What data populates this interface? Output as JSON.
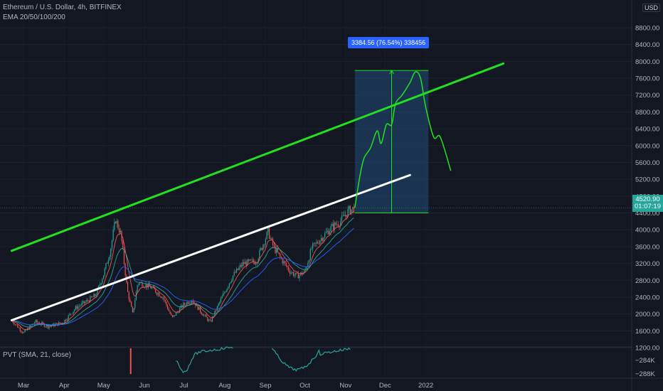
{
  "header": {
    "symbol_line": "Ethereum / U.S. Dollar, 4h, BITFINEX",
    "indicator_line": "EMA 20/50/100/200",
    "currency_badge": "USD"
  },
  "price_tag": {
    "price": "4520.90",
    "countdown": "01:07:19"
  },
  "range_measure": {
    "label": "3384.56 (76.54%) 338456"
  },
  "pvt": {
    "label": "PVT (SMA, 21, close)",
    "ticks": [
      "−284K",
      "−288K"
    ]
  },
  "colors": {
    "up": "#26a69a",
    "down": "#ef5350",
    "green_line": "#22e01f",
    "white_line": "#ffffff",
    "range_fill": "#1e3a5f",
    "accent": "#2962ff"
  },
  "chart_data": {
    "type": "candlestick",
    "symbol": "Ethereum / U.S. Dollar",
    "timeframe": "4h",
    "exchange": "BITFINEX",
    "ylim": [
      1100,
      8900
    ],
    "y_ticks": [
      1200,
      1600,
      2000,
      2400,
      2800,
      3200,
      3600,
      4000,
      4400,
      4800,
      5200,
      5600,
      6000,
      6400,
      6800,
      7200,
      7600,
      8000,
      8400,
      8800
    ],
    "y_tick_labels": [
      "1200.00",
      "1600.00",
      "2000.00",
      "2400.00",
      "2800.00",
      "3200.00",
      "3600.00",
      "4000.00",
      "4400.00",
      "4800.00",
      "5200.00",
      "5600.00",
      "6000.00",
      "6400.00",
      "6800.00",
      "7200.00",
      "7600.00",
      "8000.00",
      "8400.00",
      "8800.00"
    ],
    "x_tick_labels": [
      "Mar",
      "Apr",
      "May",
      "Jun",
      "Jul",
      "Aug",
      "Sep",
      "Oct",
      "Nov",
      "Dec",
      "2022"
    ],
    "price_path": [
      {
        "date": "2021-02-20",
        "price": 1850
      },
      {
        "date": "2021-03-01",
        "price": 1550
      },
      {
        "date": "2021-03-10",
        "price": 1820
      },
      {
        "date": "2021-03-20",
        "price": 1700
      },
      {
        "date": "2021-03-31",
        "price": 1800
      },
      {
        "date": "2021-04-10",
        "price": 2150
      },
      {
        "date": "2021-04-18",
        "price": 2300
      },
      {
        "date": "2021-04-25",
        "price": 2450
      },
      {
        "date": "2021-05-01",
        "price": 2950
      },
      {
        "date": "2021-05-06",
        "price": 3500
      },
      {
        "date": "2021-05-10",
        "price": 4250
      },
      {
        "date": "2021-05-14",
        "price": 3900
      },
      {
        "date": "2021-05-19",
        "price": 2550
      },
      {
        "date": "2021-05-23",
        "price": 2000
      },
      {
        "date": "2021-05-27",
        "price": 2750
      },
      {
        "date": "2021-06-05",
        "price": 2650
      },
      {
        "date": "2021-06-15",
        "price": 2400
      },
      {
        "date": "2021-06-22",
        "price": 1900
      },
      {
        "date": "2021-06-30",
        "price": 2200
      },
      {
        "date": "2021-07-07",
        "price": 2350
      },
      {
        "date": "2021-07-14",
        "price": 2050
      },
      {
        "date": "2021-07-21",
        "price": 1800
      },
      {
        "date": "2021-07-30",
        "price": 2400
      },
      {
        "date": "2021-08-07",
        "price": 2900
      },
      {
        "date": "2021-08-15",
        "price": 3200
      },
      {
        "date": "2021-08-25",
        "price": 3250
      },
      {
        "date": "2021-09-03",
        "price": 3950
      },
      {
        "date": "2021-09-07",
        "price": 3600
      },
      {
        "date": "2021-09-12",
        "price": 3350
      },
      {
        "date": "2021-09-20",
        "price": 3000
      },
      {
        "date": "2021-09-25",
        "price": 2900
      },
      {
        "date": "2021-10-01",
        "price": 3000
      },
      {
        "date": "2021-10-06",
        "price": 3550
      },
      {
        "date": "2021-10-15",
        "price": 3850
      },
      {
        "date": "2021-10-21",
        "price": 4050
      },
      {
        "date": "2021-10-28",
        "price": 4200
      },
      {
        "date": "2021-11-03",
        "price": 4450
      },
      {
        "date": "2021-11-08",
        "price": 4520.9
      }
    ],
    "projection_path": [
      {
        "date": "2021-11-08",
        "price": 4520
      },
      {
        "date": "2021-11-12",
        "price": 5300
      },
      {
        "date": "2021-11-15",
        "price": 5700
      },
      {
        "date": "2021-11-20",
        "price": 5950
      },
      {
        "date": "2021-11-25",
        "price": 6350
      },
      {
        "date": "2021-11-28",
        "price": 6050
      },
      {
        "date": "2021-12-02",
        "price": 6500
      },
      {
        "date": "2021-12-06",
        "price": 6500
      },
      {
        "date": "2021-12-09",
        "price": 7000
      },
      {
        "date": "2021-12-14",
        "price": 7200
      },
      {
        "date": "2021-12-20",
        "price": 7500
      },
      {
        "date": "2021-12-24",
        "price": 7750
      },
      {
        "date": "2021-12-28",
        "price": 7600
      },
      {
        "date": "2022-01-01",
        "price": 6900
      },
      {
        "date": "2022-01-07",
        "price": 6200
      },
      {
        "date": "2022-01-12",
        "price": 6200
      },
      {
        "date": "2022-01-20",
        "price": 5400
      }
    ],
    "trendlines": [
      {
        "color": "green",
        "from": {
          "date": "2021-02-20",
          "price": 3500
        },
        "to": {
          "date": "2022-03-01",
          "price": 7950
        }
      },
      {
        "color": "white",
        "from": {
          "date": "2021-02-20",
          "price": 1850
        },
        "to": {
          "date": "2021-12-20",
          "price": 5300
        }
      }
    ],
    "range_box": {
      "from_date": "2021-11-08",
      "to_date": "2022-01-03",
      "low": 4400,
      "high": 7785
    },
    "current_price": 4520.9
  }
}
